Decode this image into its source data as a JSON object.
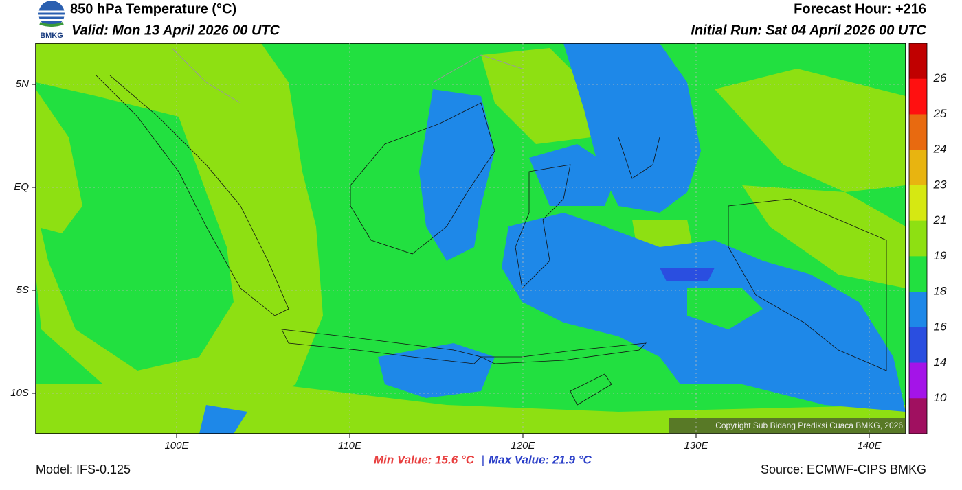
{
  "header": {
    "title": "850 hPa Temperature (°C)",
    "valid": "Valid: Mon 13 April 2026 00 UTC",
    "forecast_hour": "Forecast Hour: +216",
    "initial_run": "Initial Run: Sat 04 April 2026 00 UTC",
    "logo": "BMKG"
  },
  "map": {
    "lat_labels": [
      "5N",
      "EQ",
      "5S",
      "10S"
    ],
    "lon_labels": [
      "100E",
      "110E",
      "120E",
      "130E",
      "140E"
    ],
    "copyright": "Copyright Sub Bidang Prediksi Cuaca BMKG, 2026"
  },
  "colorbar": {
    "labels": [
      "26",
      "25",
      "24",
      "23",
      "21",
      "19",
      "18",
      "16",
      "14",
      "10"
    ],
    "colors": [
      "#c00000",
      "#ff1010",
      "#e86a10",
      "#e8b410",
      "#d6e812",
      "#8ee012",
      "#22e040",
      "#1e88e8",
      "#2a4ee0",
      "#a414e8",
      "#a01060"
    ]
  },
  "footer": {
    "model": "Model: IFS-0.125",
    "min": "Min Value: 15.6 °C",
    "separator": "|",
    "max": "Max Value: 21.9 °C",
    "source": "Source: ECMWF-CIPS BMKG"
  }
}
